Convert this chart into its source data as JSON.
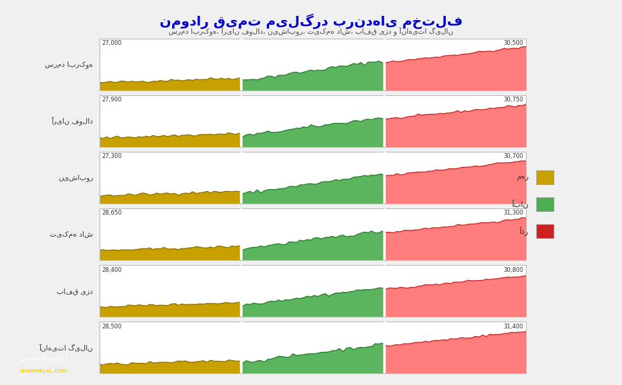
{
  "title": "نمودار قیمت میلگرد برندهای مختلف",
  "subtitle": "سرمد ابرکوه، آریان فولاد، نیشابور، تیکمه داش، بافق یزد و آناهیتا گیلان",
  "brands": [
    {
      "name": "سرمد ابرکوه",
      "min_label": "27,000",
      "max_label": "30,500",
      "min_val": 27000,
      "max_val": 30500
    },
    {
      "name": "آریان فولاد",
      "min_label": "27,900",
      "max_label": "30,750",
      "min_val": 27900,
      "max_val": 30750
    },
    {
      "name": "نیشابور",
      "min_label": "27,300",
      "max_label": "30,700",
      "min_val": 27300,
      "max_val": 30700
    },
    {
      "name": "تیکمه داش",
      "min_label": "28,650",
      "max_label": "31,300",
      "min_val": 28650,
      "max_val": 31300
    },
    {
      "name": "بافق یزد",
      "min_label": "28,400",
      "max_label": "30,800",
      "min_val": 28400,
      "max_val": 30800
    },
    {
      "name": "آناهیتا گیلان",
      "min_label": "28,500",
      "max_label": "31,400",
      "min_val": 28500,
      "max_val": 31400
    }
  ],
  "legend_labels": [
    "مهر",
    "آبان",
    "آذر"
  ],
  "mehr_color": "#C8A000",
  "aban_color": "#4CAF50",
  "azar_color": "#FF6B6B",
  "mehr_line": "#8B7000",
  "aban_line": "#2E7D32",
  "azar_line": "#C62828",
  "bg_color": "#F0F0F0",
  "panel_bg": "#FFFFFF",
  "title_color": "#0000CC",
  "subtitle_color": "#444444",
  "border_color": "#BBBBBB",
  "label_color": "#333333",
  "n_mehr": 40,
  "n_aban": 40,
  "n_azar": 40
}
